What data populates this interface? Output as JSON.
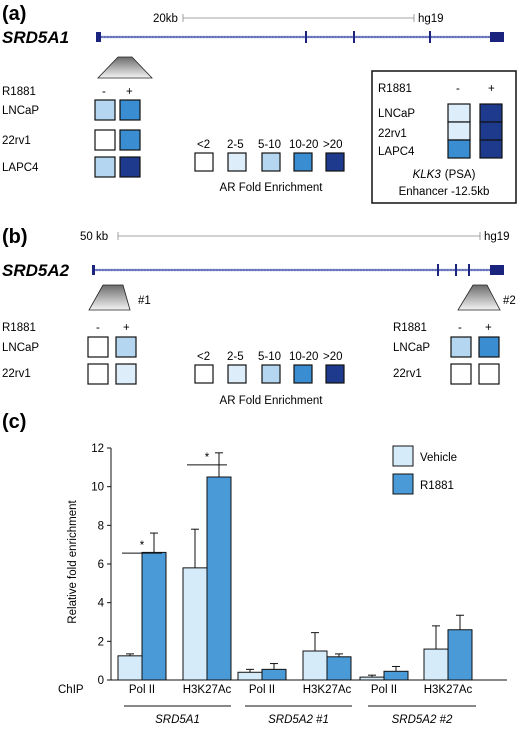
{
  "colors": {
    "fold_lt2": "#ffffff",
    "fold_2_5": "#ddeefa",
    "fold_5_10": "#b4d6f0",
    "fold_10_20": "#3a8dd0",
    "fold_gt20": "#1e3a8c",
    "gene_line": "#1a237e",
    "vehicle": "#d5ebfa",
    "r1881": "#4a9ad8"
  },
  "panel_a": {
    "label": "(a)",
    "gene": "SRD5A1",
    "scale": "20kb",
    "assembly": "hg19",
    "treatment_label": "R1881",
    "minus": "-",
    "plus": "+",
    "cell_lines": [
      "LNCaP",
      "22rv1",
      "LAPC4"
    ],
    "fold_levels": [
      [
        "5_10",
        "10_20"
      ],
      [
        "lt2",
        "10_20"
      ],
      [
        "5_10",
        "gt20"
      ]
    ],
    "legend": {
      "labels": [
        "<2",
        "2-5",
        "5-10",
        "10-20",
        ">20"
      ],
      "title": "AR Fold Enrichment"
    },
    "inset": {
      "treatment_label": "R1881",
      "cell_lines": [
        "LNCaP",
        "22rv1",
        "LAPC4"
      ],
      "fold_levels": [
        [
          "2_5",
          "gt20"
        ],
        [
          "2_5",
          "gt20"
        ],
        [
          "10_20",
          "gt20"
        ]
      ],
      "gene": "KLK3",
      "gene_suffix": "(PSA)",
      "caption": "Enhancer -12.5kb"
    }
  },
  "panel_b": {
    "label": "(b)",
    "gene": "SRD5A2",
    "scale": "50 kb",
    "assembly": "hg19",
    "site1": "#1",
    "site2": "#2",
    "treatment_label": "R1881",
    "cell_lines": [
      "LNCaP",
      "22rv1"
    ],
    "site1_levels": [
      [
        "lt2",
        "5_10"
      ],
      [
        "lt2",
        "2_5"
      ]
    ],
    "site2_levels": [
      [
        "5_10",
        "10_20"
      ],
      [
        "lt2",
        "lt2"
      ]
    ],
    "legend": {
      "labels": [
        "<2",
        "2-5",
        "5-10",
        "10-20",
        ">20"
      ],
      "title": "AR Fold Enrichment"
    }
  },
  "panel_c": {
    "label": "(c)",
    "chip_label": "ChIP",
    "significance_mark": "*",
    "chart_data": {
      "type": "bar",
      "ylabel": "Relative fold enrichment",
      "ylim": [
        0,
        12
      ],
      "yticks": [
        0,
        2,
        4,
        6,
        8,
        10,
        12
      ],
      "categories": [
        "Pol II",
        "H3K27Ac",
        "Pol II",
        "H3K27Ac",
        "Pol II",
        "H3K27Ac"
      ],
      "groups": [
        "SRD5A1",
        "SRD5A2 #1",
        "SRD5A2 #2"
      ],
      "series": [
        {
          "name": "Vehicle",
          "values": [
            1.25,
            5.8,
            0.4,
            1.5,
            0.15,
            1.6
          ],
          "errors": [
            0.1,
            2.0,
            0.15,
            0.95,
            0.1,
            1.2
          ]
        },
        {
          "name": "R1881",
          "values": [
            6.6,
            10.5,
            0.55,
            1.2,
            0.45,
            2.6
          ],
          "errors": [
            1.0,
            1.25,
            0.3,
            0.15,
            0.25,
            0.75
          ]
        }
      ],
      "significant_pairs": [
        0,
        1
      ],
      "legend_position": "top-right"
    }
  }
}
